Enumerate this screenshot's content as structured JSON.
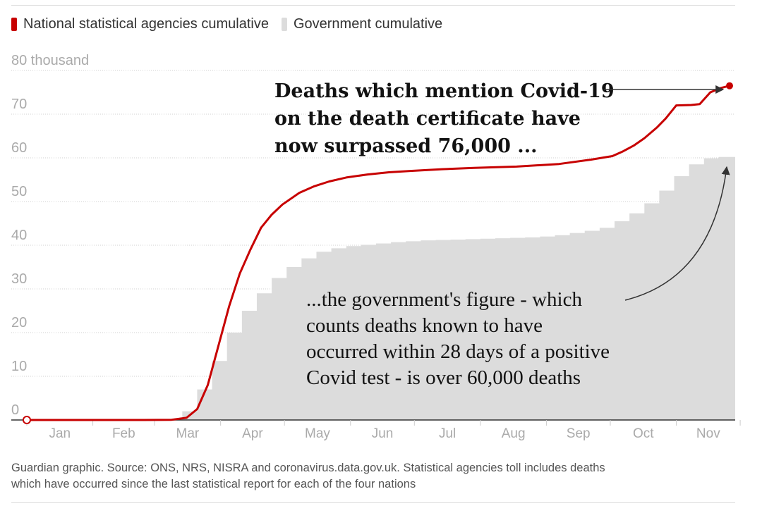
{
  "legend": {
    "national_label": "National statistical agencies cumulative",
    "government_label": "Government cumulative"
  },
  "colors": {
    "national": "#c70000",
    "government": "#dcdcdc"
  },
  "chart_data": {
    "type": "line+step-area",
    "y_unit_label": "80 thousand",
    "yticks": [
      0,
      10,
      20,
      30,
      40,
      50,
      60,
      70,
      80
    ],
    "ylim": [
      0,
      80
    ],
    "xlim": [
      0,
      330
    ],
    "months": [
      {
        "label": "Jan",
        "start": 0
      },
      {
        "label": "Feb",
        "start": 31
      },
      {
        "label": "Mar",
        "start": 60
      },
      {
        "label": "Apr",
        "start": 91
      },
      {
        "label": "May",
        "start": 121
      },
      {
        "label": "Jun",
        "start": 152
      },
      {
        "label": "Jul",
        "start": 182
      },
      {
        "label": "Aug",
        "start": 213
      },
      {
        "label": "Sep",
        "start": 244
      },
      {
        "label": "Oct",
        "start": 274
      },
      {
        "label": "Nov",
        "start": 305
      }
    ],
    "series": [
      {
        "name": "National statistical agencies cumulative",
        "type": "line",
        "x": [
          0,
          55,
          68,
          75,
          80,
          85,
          90,
          95,
          100,
          105,
          110,
          115,
          120,
          128,
          135,
          142,
          150,
          160,
          170,
          180,
          195,
          210,
          230,
          250,
          265,
          275,
          280,
          285,
          290,
          296,
          300,
          305,
          312,
          316,
          321,
          326,
          330
        ],
        "values": [
          0,
          0,
          0.05,
          0.5,
          2.5,
          8,
          17,
          26,
          33.5,
          39,
          44,
          47,
          49.3,
          52,
          53.5,
          54.6,
          55.5,
          56.2,
          56.7,
          57,
          57.4,
          57.7,
          58,
          58.6,
          59.6,
          60.4,
          61.5,
          62.8,
          64.5,
          67,
          69,
          72,
          72.1,
          72.3,
          75,
          76,
          76.5
        ]
      },
      {
        "name": "Government cumulative",
        "type": "step-area",
        "week_starts": [
          73,
          80,
          87,
          94,
          101,
          108,
          115,
          122,
          129,
          136,
          143,
          150,
          157,
          164,
          171,
          178,
          185,
          192,
          199,
          206,
          213,
          220,
          227,
          234,
          241,
          248,
          255,
          262,
          269,
          276,
          283,
          290,
          297,
          304,
          311,
          318,
          325,
          332
        ],
        "values": [
          2,
          7,
          13.5,
          20,
          25,
          29,
          32.5,
          35,
          37,
          38.5,
          39.3,
          39.8,
          40.1,
          40.4,
          40.7,
          40.9,
          41.1,
          41.2,
          41.3,
          41.4,
          41.5,
          41.6,
          41.7,
          41.8,
          42,
          42.3,
          42.8,
          43.3,
          44,
          45.5,
          47.3,
          49.6,
          52.5,
          55.8,
          58.5,
          59.9,
          60.2,
          60.2
        ]
      }
    ],
    "annotations": [
      {
        "lines": [
          "Deaths which mention Covid-19",
          "on the death certificate have",
          "now surpassed 76,000 ..."
        ],
        "style": "bold"
      },
      {
        "lines": [
          "...the government's figure - which",
          "counts deaths known to have",
          "occurred within 28 days of a positive",
          "Covid test - is over 60,000 deaths"
        ],
        "style": "regular"
      }
    ]
  },
  "footer": {
    "line1": "Guardian graphic. Source: ONS, NRS, NISRA and coronavirus.data.gov.uk. Statistical agencies toll includes deaths",
    "line2": "which have occurred since the last statistical report for each of the four nations"
  }
}
